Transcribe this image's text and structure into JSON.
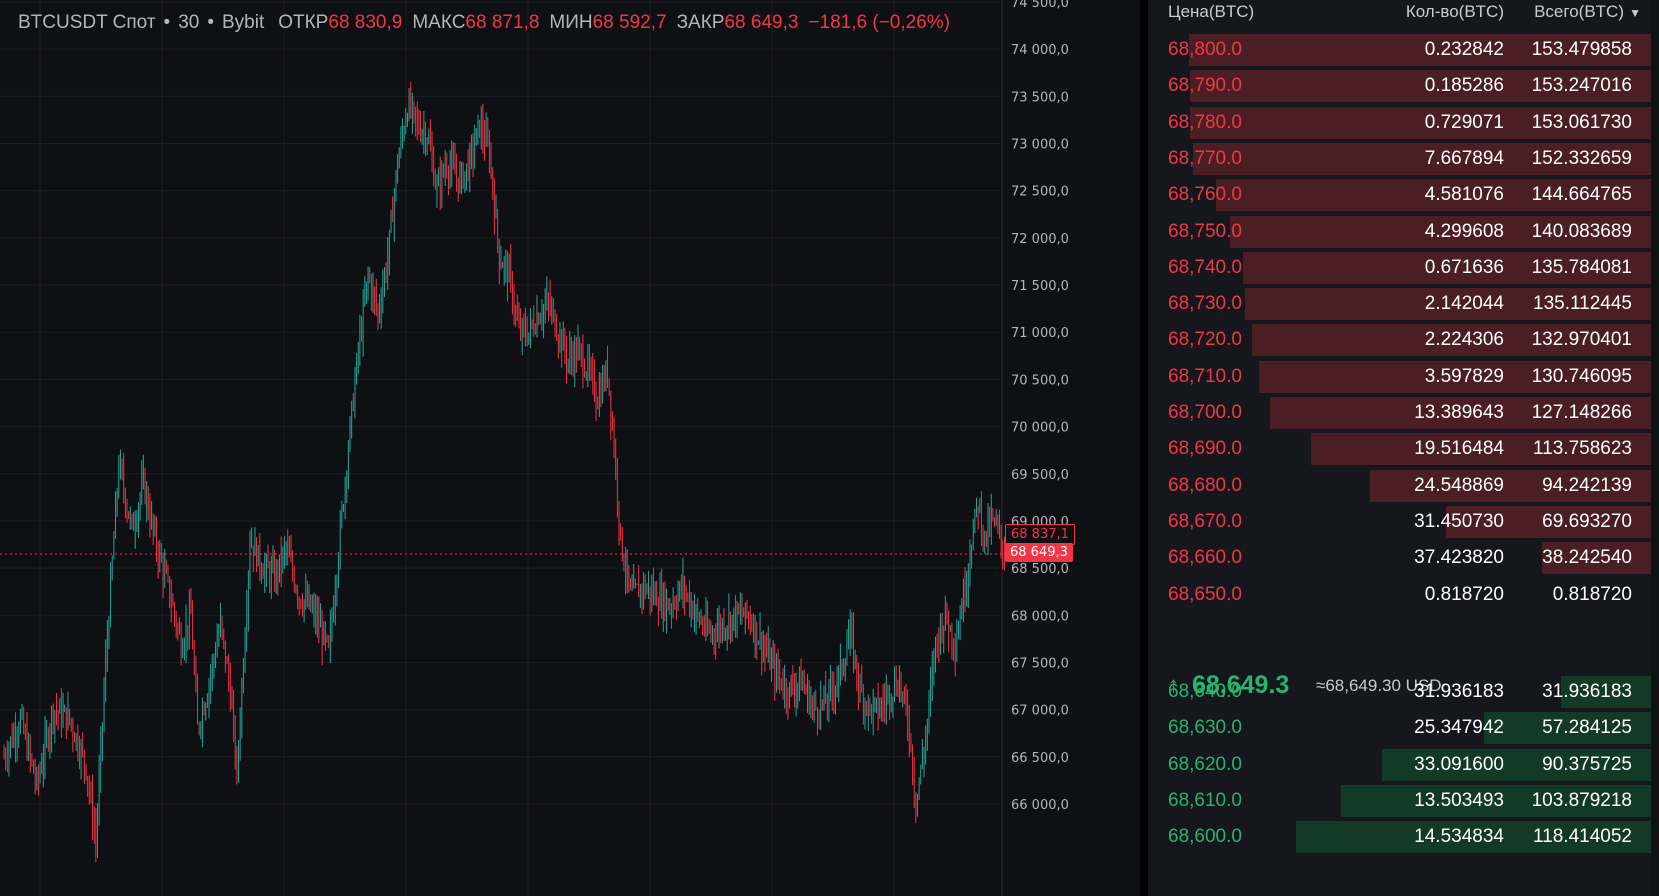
{
  "header": {
    "symbol": "BTCUSDT Спот",
    "dot1": "•",
    "interval": "30",
    "dot2": "•",
    "exchange": "Bybit",
    "open_label": "ОТКР",
    "open_value": "68 830,9",
    "high_label": "МАКС",
    "high_value": "68 871,8",
    "low_label": "МИН",
    "low_value": "68 592,7",
    "close_label": "ЗАКР",
    "close_value": "68 649,3",
    "change": "−181,6 (−0,26%)"
  },
  "chart_data": {
    "type": "candlestick",
    "y_ticks": [
      "74 500,0",
      "74 000,0",
      "73 500,0",
      "73 000,0",
      "72 500,0",
      "72 000,0",
      "71 500,0",
      "71 000,0",
      "70 500,0",
      "70 000,0",
      "69 500,0",
      "69 000,0",
      "68 500,0",
      "68 000,0",
      "67 500,0",
      "67 000,0",
      "66 500,0",
      "66 000,0"
    ],
    "y_values": [
      74500,
      74000,
      73500,
      73000,
      72500,
      72000,
      71500,
      71000,
      70500,
      70000,
      69500,
      69000,
      68500,
      68000,
      67500,
      67000,
      66500,
      66000
    ],
    "ylim": [
      65600,
      74500
    ],
    "grid": true,
    "current_price": 68649.3,
    "current_price_label": "68 649,3",
    "reference_price": 68837.1,
    "reference_price_label": "68 837,1",
    "path": [
      [
        0,
        66500
      ],
      [
        10,
        66900
      ],
      [
        20,
        66200
      ],
      [
        30,
        67000
      ],
      [
        40,
        66900
      ],
      [
        50,
        66400
      ],
      [
        56,
        65600
      ],
      [
        62,
        67500
      ],
      [
        70,
        69600
      ],
      [
        78,
        68900
      ],
      [
        85,
        69400
      ],
      [
        92,
        68800
      ],
      [
        100,
        68300
      ],
      [
        108,
        67700
      ],
      [
        114,
        68000
      ],
      [
        118,
        66800
      ],
      [
        124,
        67200
      ],
      [
        132,
        67900
      ],
      [
        138,
        67200
      ],
      [
        142,
        66300
      ],
      [
        150,
        68800
      ],
      [
        158,
        68500
      ],
      [
        165,
        68400
      ],
      [
        172,
        68700
      ],
      [
        180,
        68200
      ],
      [
        186,
        68100
      ],
      [
        192,
        67900
      ],
      [
        198,
        67600
      ],
      [
        204,
        68700
      ],
      [
        210,
        69800
      ],
      [
        216,
        70800
      ],
      [
        222,
        71600
      ],
      [
        228,
        71200
      ],
      [
        234,
        71800
      ],
      [
        240,
        72800
      ],
      [
        246,
        73400
      ],
      [
        252,
        73200
      ],
      [
        258,
        73100
      ],
      [
        264,
        72500
      ],
      [
        270,
        72800
      ],
      [
        278,
        72600
      ],
      [
        284,
        72800
      ],
      [
        290,
        73200
      ],
      [
        296,
        72900
      ],
      [
        302,
        71800
      ],
      [
        308,
        71600
      ],
      [
        314,
        71000
      ],
      [
        320,
        71000
      ],
      [
        326,
        71200
      ],
      [
        332,
        71300
      ],
      [
        338,
        71000
      ],
      [
        344,
        70700
      ],
      [
        350,
        70800
      ],
      [
        356,
        70600
      ],
      [
        362,
        70300
      ],
      [
        368,
        70600
      ],
      [
        372,
        69800
      ],
      [
        376,
        68800
      ],
      [
        382,
        68200
      ],
      [
        390,
        68300
      ],
      [
        398,
        68200
      ],
      [
        406,
        68100
      ],
      [
        414,
        68300
      ],
      [
        422,
        68000
      ],
      [
        430,
        67800
      ],
      [
        438,
        67900
      ],
      [
        446,
        68000
      ],
      [
        454,
        68000
      ],
      [
        462,
        67700
      ],
      [
        470,
        67400
      ],
      [
        478,
        67200
      ],
      [
        486,
        67300
      ],
      [
        494,
        67000
      ],
      [
        502,
        67100
      ],
      [
        510,
        67400
      ],
      [
        516,
        67800
      ],
      [
        522,
        67200
      ],
      [
        528,
        67000
      ],
      [
        534,
        67000
      ],
      [
        540,
        67200
      ],
      [
        546,
        67300
      ],
      [
        552,
        66800
      ],
      [
        556,
        66000
      ],
      [
        562,
        66700
      ],
      [
        568,
        67700
      ],
      [
        574,
        68000
      ],
      [
        580,
        67700
      ],
      [
        586,
        68300
      ],
      [
        590,
        68800
      ],
      [
        594,
        69200
      ],
      [
        598,
        68800
      ],
      [
        602,
        69000
      ],
      [
        606,
        68900
      ],
      [
        610,
        68650
      ]
    ]
  },
  "orderbook": {
    "col_price": "Цена(BTC)",
    "col_qty": "Кол-во(BTC)",
    "col_total": "Всего(BTC)",
    "asks": [
      {
        "price": "68,800.0",
        "qty": "0.232842",
        "total": "153.479858",
        "depth": 1.0
      },
      {
        "price": "68,790.0",
        "qty": "0.185286",
        "total": "153.247016",
        "depth": 0.998
      },
      {
        "price": "68,780.0",
        "qty": "0.729071",
        "total": "153.061730",
        "depth": 0.997
      },
      {
        "price": "68,770.0",
        "qty": "7.667894",
        "total": "152.332659",
        "depth": 0.992
      },
      {
        "price": "68,760.0",
        "qty": "4.581076",
        "total": "144.664765",
        "depth": 0.943
      },
      {
        "price": "68,750.0",
        "qty": "4.299608",
        "total": "140.083689",
        "depth": 0.913
      },
      {
        "price": "68,740.0",
        "qty": "0.671636",
        "total": "135.784081",
        "depth": 0.885
      },
      {
        "price": "68,730.0",
        "qty": "2.142044",
        "total": "135.112445",
        "depth": 0.88
      },
      {
        "price": "68,720.0",
        "qty": "2.224306",
        "total": "132.970401",
        "depth": 0.866
      },
      {
        "price": "68,710.0",
        "qty": "3.597829",
        "total": "130.746095",
        "depth": 0.852
      },
      {
        "price": "68,700.0",
        "qty": "13.389643",
        "total": "127.148266",
        "depth": 0.828
      },
      {
        "price": "68,690.0",
        "qty": "19.516484",
        "total": "113.758623",
        "depth": 0.741
      },
      {
        "price": "68,680.0",
        "qty": "24.548869",
        "total": "94.242139",
        "depth": 0.614
      },
      {
        "price": "68,670.0",
        "qty": "31.450730",
        "total": "69.693270",
        "depth": 0.454
      },
      {
        "price": "68,660.0",
        "qty": "37.423820",
        "total": "38.242540",
        "depth": 0.249
      },
      {
        "price": "68,650.0",
        "qty": "0.818720",
        "total": "0.818720",
        "depth": 0.005
      }
    ],
    "last_price": "68,649.3",
    "last_arrow": "↑",
    "last_usd": "≈68,649.30 USD",
    "bids": [
      {
        "price": "68,640.0",
        "qty": "31.936183",
        "total": "31.936183",
        "depth": 0.208
      },
      {
        "price": "68,630.0",
        "qty": "25.347942",
        "total": "57.284125",
        "depth": 0.373
      },
      {
        "price": "68,620.0",
        "qty": "33.091600",
        "total": "90.375725",
        "depth": 0.589
      },
      {
        "price": "68,610.0",
        "qty": "13.503493",
        "total": "103.879218",
        "depth": 0.677
      },
      {
        "price": "68,600.0",
        "qty": "14.534834",
        "total": "118.414052",
        "depth": 0.772
      }
    ]
  },
  "colors": {
    "up": "#26a69a",
    "down": "#f23645",
    "ask_text": "#f23645",
    "bid_text": "#26b56e",
    "ask_bar": "#4a1e22",
    "bid_bar": "#133a27"
  }
}
